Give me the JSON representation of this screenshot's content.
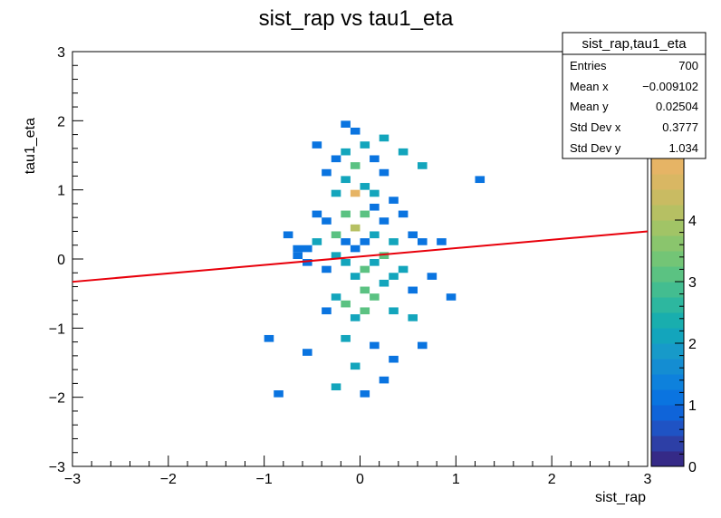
{
  "chart_data": {
    "type": "heatmap",
    "title": "sist_rap vs tau1_eta",
    "xlabel": "sist_rap",
    "ylabel": "tau1_eta",
    "xlim": [
      -3,
      3
    ],
    "ylim": [
      -3,
      3
    ],
    "x_ticks": [
      "−3",
      "−2",
      "−1",
      "0",
      "1",
      "2",
      "3"
    ],
    "y_ticks": [
      "−3",
      "−2",
      "−1",
      "0",
      "1",
      "2",
      "3"
    ],
    "colorbar": {
      "min": 0,
      "max": 5,
      "ticks": [
        "0",
        "1",
        "2",
        "3",
        "4"
      ]
    },
    "stats": {
      "title": "sist_rap,tau1_eta",
      "rows": [
        {
          "label": "Entries",
          "value": "700"
        },
        {
          "label": "Mean x",
          "value": "−0.009102"
        },
        {
          "label": "Mean y",
          "value": "0.02504"
        },
        {
          "label": "Std Dev x",
          "value": "0.3777"
        },
        {
          "label": "Std Dev y",
          "value": "1.034"
        }
      ]
    },
    "fit_line": {
      "x": [
        -3,
        3
      ],
      "y": [
        -0.33,
        0.4
      ],
      "color": "#e8000b"
    },
    "bin_width": {
      "x": 0.1,
      "y": 0.1
    },
    "bins": [
      [
        -0.7,
        0.1,
        1
      ],
      [
        -0.7,
        0.0,
        1
      ],
      [
        -0.6,
        0.1,
        1
      ],
      [
        -0.6,
        -0.1,
        1
      ],
      [
        -0.5,
        0.6,
        1
      ],
      [
        -0.5,
        0.2,
        2
      ],
      [
        -0.4,
        1.2,
        1
      ],
      [
        -0.4,
        0.5,
        1
      ],
      [
        -0.4,
        -0.2,
        1
      ],
      [
        -0.3,
        1.4,
        1
      ],
      [
        -0.3,
        0.9,
        2
      ],
      [
        -0.3,
        0.3,
        3
      ],
      [
        -0.3,
        -0.6,
        2
      ],
      [
        -0.2,
        1.5,
        2
      ],
      [
        -0.2,
        1.1,
        2
      ],
      [
        -0.2,
        0.6,
        3
      ],
      [
        -0.2,
        0.2,
        1
      ],
      [
        -0.2,
        -0.1,
        2
      ],
      [
        -0.2,
        -0.7,
        3
      ],
      [
        -0.1,
        1.8,
        1
      ],
      [
        -0.1,
        1.3,
        3
      ],
      [
        -0.1,
        0.9,
        5
      ],
      [
        -0.1,
        0.4,
        4
      ],
      [
        -0.1,
        0.1,
        1
      ],
      [
        -0.1,
        -0.3,
        2
      ],
      [
        -0.1,
        -0.9,
        2
      ],
      [
        0.0,
        1.6,
        2
      ],
      [
        0.0,
        1.0,
        2
      ],
      [
        0.0,
        0.6,
        3
      ],
      [
        0.0,
        0.2,
        1
      ],
      [
        0.0,
        -0.2,
        3
      ],
      [
        0.0,
        -0.5,
        3
      ],
      [
        0.0,
        -0.8,
        3
      ],
      [
        0.1,
        1.4,
        1
      ],
      [
        0.1,
        0.7,
        1
      ],
      [
        0.1,
        0.3,
        2
      ],
      [
        0.1,
        -0.1,
        2
      ],
      [
        0.1,
        -0.6,
        3
      ],
      [
        0.2,
        1.7,
        2
      ],
      [
        0.2,
        1.2,
        1
      ],
      [
        0.2,
        0.5,
        1
      ],
      [
        0.2,
        0.0,
        3
      ],
      [
        0.2,
        -0.4,
        2
      ],
      [
        0.3,
        0.8,
        1
      ],
      [
        0.3,
        0.2,
        2
      ],
      [
        0.3,
        -0.3,
        2
      ],
      [
        0.3,
        -0.8,
        2
      ],
      [
        0.4,
        1.5,
        2
      ],
      [
        0.4,
        0.6,
        1
      ],
      [
        0.4,
        -0.2,
        2
      ],
      [
        0.5,
        0.3,
        1
      ],
      [
        0.5,
        -0.5,
        1
      ],
      [
        0.6,
        1.3,
        2
      ],
      [
        0.6,
        0.2,
        1
      ],
      [
        0.7,
        -0.3,
        1
      ],
      [
        0.8,
        0.2,
        1
      ],
      [
        0.9,
        -0.6,
        1
      ],
      [
        -0.8,
        0.3,
        1
      ],
      [
        -0.4,
        -0.8,
        1
      ],
      [
        0.5,
        -0.9,
        2
      ],
      [
        -0.2,
        -1.2,
        2
      ],
      [
        0.1,
        -1.3,
        1
      ],
      [
        -0.1,
        -1.6,
        2
      ],
      [
        0.3,
        -1.5,
        1
      ],
      [
        -0.3,
        -1.9,
        2
      ],
      [
        0.0,
        -2.0,
        1
      ],
      [
        0.2,
        -1.8,
        1
      ],
      [
        -0.6,
        -1.4,
        1
      ],
      [
        -0.2,
        1.9,
        1
      ],
      [
        -0.5,
        1.6,
        1
      ],
      [
        1.2,
        1.1,
        1
      ],
      [
        -0.9,
        -2.0,
        1
      ],
      [
        -1.0,
        -1.2,
        1
      ],
      [
        0.6,
        -1.3,
        1
      ],
      [
        -0.3,
        0.0,
        2
      ],
      [
        0.1,
        0.9,
        2
      ]
    ]
  }
}
